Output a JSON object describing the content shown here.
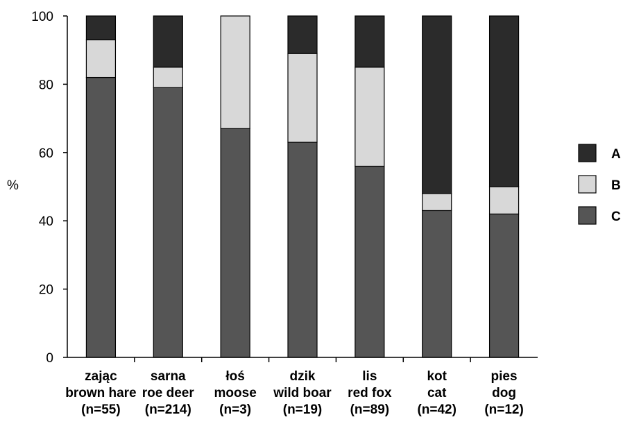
{
  "chart_data": {
    "type": "bar",
    "stacked": true,
    "ylabel": "%",
    "ylim": [
      0,
      100
    ],
    "yticks": [
      "0",
      "20",
      "40",
      "60",
      "80",
      "100"
    ],
    "legend_position": "right",
    "categories": [
      [
        "zając",
        "brown hare",
        "(n=55)"
      ],
      [
        "sarna",
        "roe deer",
        "(n=214)"
      ],
      [
        "łoś",
        "moose",
        "(n=3)"
      ],
      [
        "dzik",
        "wild boar",
        "(n=19)"
      ],
      [
        "lis",
        "red fox",
        "(n=89)"
      ],
      [
        "kot",
        "cat",
        "(n=42)"
      ],
      [
        "pies",
        "dog",
        "(n=12)"
      ]
    ],
    "series": [
      {
        "name": "C",
        "color": "#555555",
        "values": [
          82,
          79,
          67,
          63,
          56,
          43,
          42
        ]
      },
      {
        "name": "B",
        "color": "#d8d8d8",
        "values": [
          11,
          6,
          33,
          26,
          29,
          5,
          8
        ]
      },
      {
        "name": "A",
        "color": "#2b2b2b",
        "values": [
          7,
          15,
          0,
          11,
          15,
          52,
          50
        ]
      }
    ],
    "legend_order": [
      "A",
      "B",
      "C"
    ]
  }
}
